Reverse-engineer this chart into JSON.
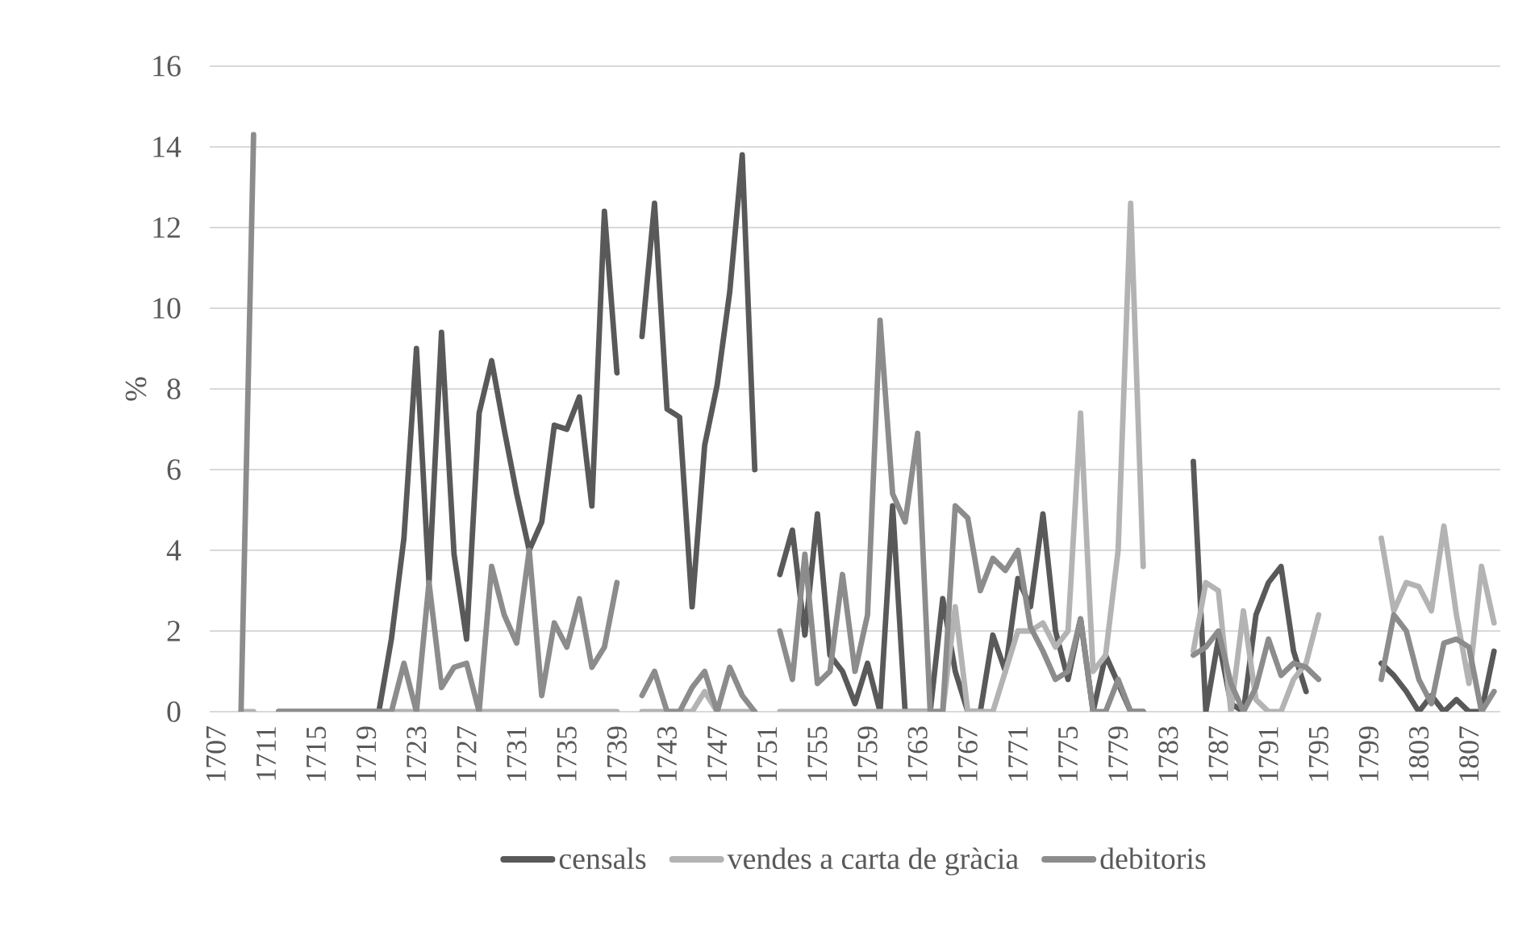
{
  "chart_data": {
    "type": "line",
    "ylabel": "%",
    "x": [
      1709,
      1710,
      1711,
      1712,
      1713,
      1714,
      1715,
      1716,
      1717,
      1718,
      1719,
      1720,
      1721,
      1722,
      1723,
      1724,
      1725,
      1726,
      1727,
      1728,
      1729,
      1730,
      1731,
      1732,
      1733,
      1734,
      1735,
      1736,
      1737,
      1738,
      1739,
      1740,
      1741,
      1742,
      1743,
      1744,
      1745,
      1746,
      1747,
      1748,
      1749,
      1750,
      1751,
      1752,
      1753,
      1754,
      1755,
      1756,
      1757,
      1758,
      1759,
      1760,
      1761,
      1762,
      1763,
      1764,
      1765,
      1766,
      1767,
      1768,
      1769,
      1770,
      1771,
      1772,
      1773,
      1774,
      1775,
      1776,
      1777,
      1778,
      1779,
      1780,
      1781,
      1782,
      1783,
      1784,
      1785,
      1786,
      1787,
      1788,
      1789,
      1790,
      1791,
      1792,
      1793,
      1794,
      1795,
      1796,
      1797,
      1798,
      1799,
      1800,
      1801,
      1802,
      1803,
      1804,
      1805,
      1806,
      1807,
      1808,
      1809
    ],
    "series": [
      {
        "name": "censals",
        "color": "#595959",
        "values": [
          null,
          null,
          null,
          0,
          0,
          0,
          0,
          0,
          0,
          0,
          0,
          0,
          1.8,
          4.3,
          9.0,
          3.2,
          9.4,
          3.9,
          1.8,
          7.4,
          8.7,
          7.0,
          5.4,
          4.0,
          4.7,
          7.1,
          7.0,
          7.8,
          5.1,
          12.4,
          8.4,
          null,
          9.3,
          12.6,
          7.5,
          7.3,
          2.6,
          6.6,
          8.1,
          10.4,
          13.8,
          6.0,
          null,
          3.4,
          4.5,
          1.9,
          4.9,
          1.4,
          1.0,
          0.2,
          1.2,
          0,
          5.1,
          0,
          0,
          0,
          2.8,
          1.0,
          0,
          0,
          1.9,
          1.0,
          3.3,
          2.6,
          4.9,
          2.0,
          0.8,
          2.3,
          0,
          1.4,
          0.7,
          0,
          0,
          null,
          null,
          null,
          6.2,
          0,
          1.8,
          0.2,
          0,
          2.4,
          3.2,
          3.6,
          1.5,
          0.5,
          null,
          null,
          null,
          null,
          null,
          1.2,
          0.9,
          0.5,
          0,
          0.4,
          0,
          0.3,
          0,
          0,
          1.5
        ]
      },
      {
        "name": "vendes a carta de gràcia",
        "color": "#b3b3b3",
        "values": [
          0,
          0,
          null,
          0,
          0,
          0,
          0,
          0,
          0,
          0,
          0,
          0,
          0,
          0,
          0,
          0,
          0,
          0,
          0,
          0,
          0,
          0,
          0,
          0,
          0,
          0,
          0,
          0,
          0,
          0,
          0,
          null,
          0,
          0,
          0,
          0,
          0,
          0.5,
          0,
          0,
          0,
          0,
          null,
          0,
          0,
          0,
          0,
          0,
          0,
          0,
          0,
          0,
          0,
          0,
          0,
          0,
          0,
          2.6,
          0,
          0,
          0,
          1.0,
          2.0,
          2.0,
          2.2,
          1.6,
          2.0,
          7.4,
          1.0,
          1.4,
          4.0,
          12.6,
          3.6,
          null,
          null,
          null,
          1.5,
          3.2,
          3.0,
          0,
          2.5,
          0.3,
          0,
          0,
          0.8,
          1.2,
          2.4,
          null,
          null,
          null,
          null,
          4.3,
          2.5,
          3.2,
          3.1,
          2.5,
          4.6,
          2.4,
          0.7,
          3.6,
          2.2
        ]
      },
      {
        "name": "debitoris",
        "color": "#8c8c8c",
        "values": [
          0,
          14.3,
          null,
          0,
          0,
          0,
          0,
          0,
          0,
          0,
          0,
          0,
          0,
          1.2,
          0,
          3.2,
          0.6,
          1.1,
          1.2,
          0,
          3.6,
          2.4,
          1.7,
          4.0,
          0.4,
          2.2,
          1.6,
          2.8,
          1.1,
          1.6,
          3.2,
          null,
          0.4,
          1.0,
          0,
          0,
          0.6,
          1.0,
          0,
          1.1,
          0.4,
          0,
          null,
          2.0,
          0.8,
          3.9,
          0.7,
          1.0,
          3.4,
          1.0,
          2.4,
          9.7,
          5.4,
          4.7,
          6.9,
          0,
          0,
          5.1,
          4.8,
          3.0,
          3.8,
          3.5,
          4.0,
          2.1,
          1.5,
          0.8,
          1.0,
          2.3,
          0,
          0,
          0.8,
          0,
          0,
          null,
          null,
          null,
          1.4,
          1.6,
          2.0,
          0.7,
          0,
          0.6,
          1.8,
          0.9,
          1.2,
          1.1,
          0.8,
          null,
          null,
          null,
          null,
          0.8,
          2.4,
          2.0,
          0.8,
          0.2,
          1.7,
          1.8,
          1.6,
          0,
          0.5
        ]
      }
    ],
    "xlim": [
      1706.5,
      1809.5
    ],
    "xticks": [
      1707,
      1711,
      1715,
      1719,
      1723,
      1727,
      1731,
      1735,
      1739,
      1743,
      1747,
      1751,
      1755,
      1759,
      1763,
      1767,
      1771,
      1775,
      1779,
      1783,
      1787,
      1791,
      1795,
      1799,
      1803,
      1807
    ],
    "ylim": [
      0,
      16
    ],
    "yticks": [
      0,
      2,
      4,
      6,
      8,
      10,
      12,
      14,
      16
    ],
    "grid": "y",
    "legend": "bottom"
  }
}
